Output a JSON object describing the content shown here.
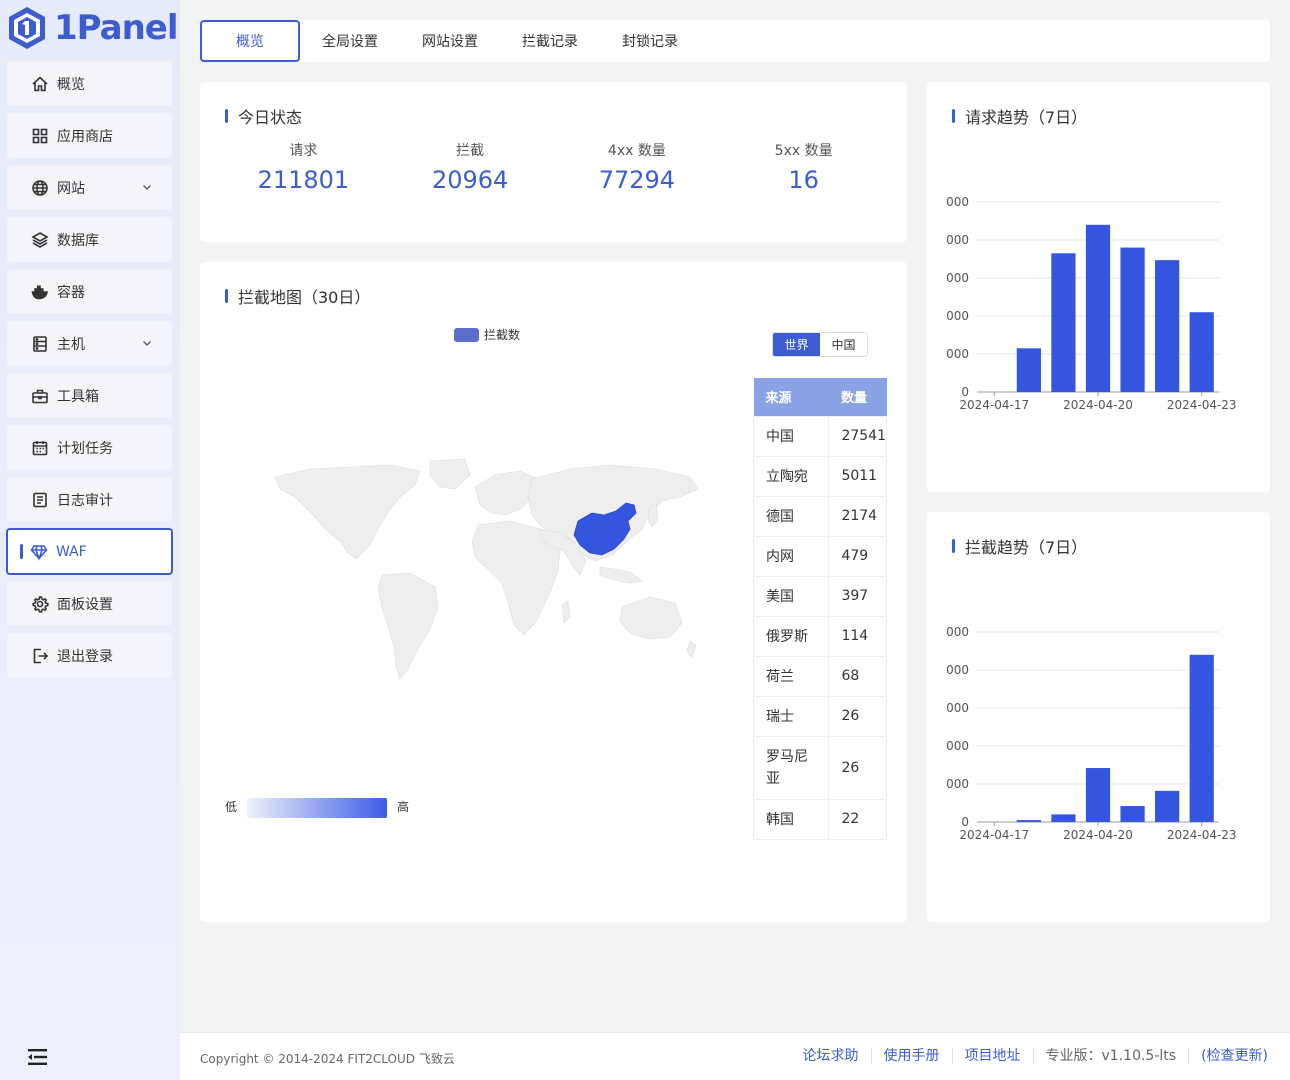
{
  "app": {
    "logo_text": "1Panel"
  },
  "sidebar": {
    "items": [
      {
        "label": "概览",
        "icon": "home-icon"
      },
      {
        "label": "应用商店",
        "icon": "grid-icon"
      },
      {
        "label": "网站",
        "icon": "globe-icon",
        "expandable": true
      },
      {
        "label": "数据库",
        "icon": "layers-icon"
      },
      {
        "label": "容器",
        "icon": "docker-icon"
      },
      {
        "label": "主机",
        "icon": "server-icon",
        "expandable": true
      },
      {
        "label": "工具箱",
        "icon": "toolbox-icon"
      },
      {
        "label": "计划任务",
        "icon": "calendar-icon"
      },
      {
        "label": "日志审计",
        "icon": "log-icon"
      },
      {
        "label": "WAF",
        "icon": "diamond-icon",
        "active": true
      },
      {
        "label": "面板设置",
        "icon": "gear-icon"
      },
      {
        "label": "退出登录",
        "icon": "logout-icon"
      }
    ]
  },
  "tabs": [
    "概览",
    "全局设置",
    "网站设置",
    "拦截记录",
    "封锁记录"
  ],
  "today": {
    "title": "今日状态",
    "stats": [
      {
        "label": "请求",
        "value": "211801"
      },
      {
        "label": "拦截",
        "value": "20964"
      },
      {
        "label": "4xx 数量",
        "value": "77294"
      },
      {
        "label": "5xx 数量",
        "value": "16"
      }
    ]
  },
  "map_card": {
    "title": "拦截地图（30日）",
    "legend": "拦截数",
    "toggle": [
      "世界",
      "中国"
    ],
    "visual_low": "低",
    "visual_high": "高",
    "table_headers": [
      "来源",
      "数量"
    ],
    "rows": [
      {
        "name": "中国",
        "count": "27541"
      },
      {
        "name": "立陶宛",
        "count": "5011"
      },
      {
        "name": "德国",
        "count": "2174"
      },
      {
        "name": "内网",
        "count": "479"
      },
      {
        "name": "美国",
        "count": "397"
      },
      {
        "name": "俄罗斯",
        "count": "114"
      },
      {
        "name": "荷兰",
        "count": "68"
      },
      {
        "name": "瑞士",
        "count": "26"
      },
      {
        "name": "罗马尼亚",
        "count": "26"
      },
      {
        "name": "韩国",
        "count": "22"
      }
    ]
  },
  "colors": {
    "accent": "#3d5ccf",
    "bar": "#3355e0"
  },
  "chart_data": [
    {
      "type": "bar",
      "title": "请求趋势（7日）",
      "categories": [
        "2024-04-17",
        "2024-04-18",
        "2024-04-19",
        "2024-04-20",
        "2024-04-21",
        "2024-04-22",
        "2024-04-23"
      ],
      "x_tick_labels": [
        "2024-04-17",
        "2024-04-20",
        "2024-04-23"
      ],
      "y_tick_labels": [
        "0",
        "000",
        "000",
        "000",
        "000",
        "000"
      ],
      "values": [
        0,
        1.15,
        3.65,
        4.4,
        3.8,
        3.47,
        2.1
      ],
      "ylim": [
        0,
        5
      ]
    },
    {
      "type": "bar",
      "title": "拦截趋势（7日）",
      "categories": [
        "2024-04-17",
        "2024-04-18",
        "2024-04-19",
        "2024-04-20",
        "2024-04-21",
        "2024-04-22",
        "2024-04-23"
      ],
      "x_tick_labels": [
        "2024-04-17",
        "2024-04-20",
        "2024-04-23"
      ],
      "y_tick_labels": [
        "0",
        "000",
        "000",
        "000",
        "000",
        "000"
      ],
      "values": [
        0,
        0.05,
        0.2,
        1.42,
        0.42,
        0.82,
        4.4
      ],
      "ylim": [
        0,
        5
      ]
    }
  ],
  "footer": {
    "copyright": "Copyright © 2014-2024 FIT2CLOUD 飞致云",
    "links": [
      "论坛求助",
      "使用手册",
      "项目地址"
    ],
    "version": "专业版：v1.10.5-lts",
    "check_update": "(检查更新)"
  }
}
